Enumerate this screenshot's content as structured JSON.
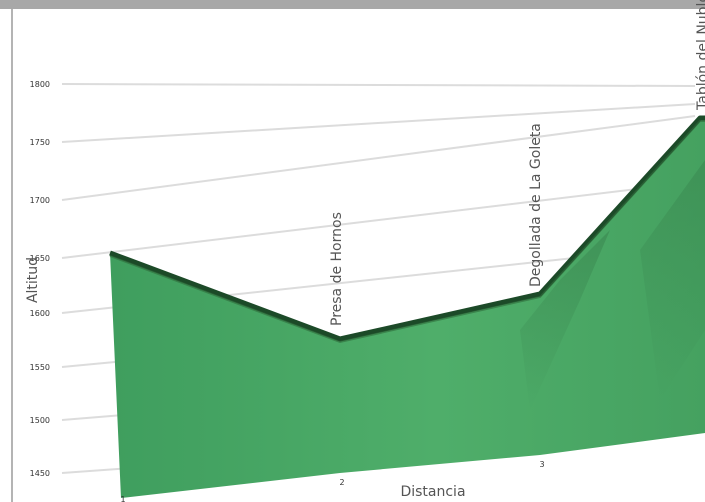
{
  "chart_data": {
    "type": "area",
    "title": "",
    "xlabel": "Distancia",
    "ylabel": "Altitud",
    "y_ticks": [
      1450,
      1500,
      1550,
      1600,
      1650,
      1700,
      1750,
      1800
    ],
    "x_ticks": [
      "1",
      "2",
      "3"
    ],
    "ylim": [
      1450,
      1800
    ],
    "grid": true,
    "series": [
      {
        "values": [
          {
            "x": 1,
            "y": 1653
          },
          {
            "x": 2,
            "y": 1572
          },
          {
            "x": 3,
            "y": 1613
          },
          {
            "x": 4,
            "y": 1745
          }
        ]
      }
    ],
    "annotations": [
      {
        "text": "Presa de Hornos",
        "x": 2
      },
      {
        "text": "Degollada de La Goleta",
        "x": 3
      },
      {
        "text": "Tablón del Nublo",
        "x": 4
      }
    ],
    "colors": {
      "area": "#4da866",
      "area_light": "#5cb874",
      "top_edge": "#1c4a28",
      "grid": "#dcdcdc",
      "text": "#555555"
    }
  }
}
